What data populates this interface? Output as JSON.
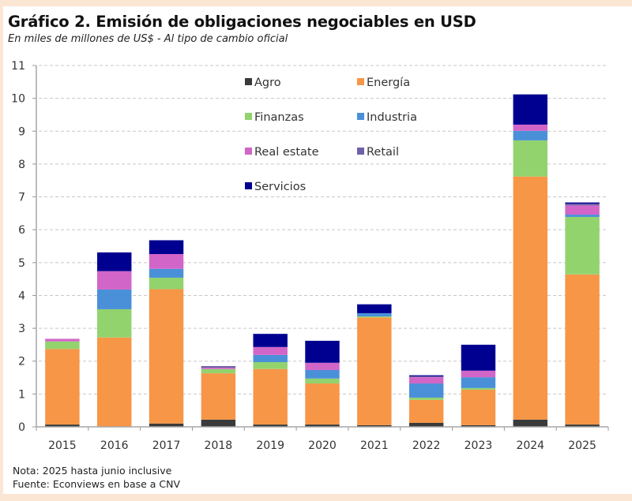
{
  "chart_data": {
    "type": "bar",
    "stacked": true,
    "title": "Gráfico 2. Emisión de obligaciones negociables en USD",
    "subtitle": "En miles de millones de US$ - Al tipo de cambio oficial",
    "xlabel": "",
    "ylabel": "",
    "ylim": [
      0,
      11
    ],
    "yticks": [
      0,
      1,
      2,
      3,
      4,
      5,
      6,
      7,
      8,
      9,
      10,
      11
    ],
    "grid": true,
    "legend_position": "top-center",
    "categories": [
      "2015",
      "2016",
      "2017",
      "2018",
      "2019",
      "2020",
      "2021",
      "2022",
      "2023",
      "2024",
      "2025"
    ],
    "series": [
      {
        "name": "Agro",
        "color": "#3a3a3a",
        "values": [
          0.07,
          0.01,
          0.1,
          0.22,
          0.07,
          0.07,
          0.05,
          0.12,
          0.05,
          0.22,
          0.07
        ]
      },
      {
        "name": "Energía",
        "color": "#f79646",
        "values": [
          2.3,
          2.71,
          4.09,
          1.41,
          1.69,
          1.25,
          3.28,
          0.7,
          1.08,
          7.4,
          4.57
        ]
      },
      {
        "name": "Finanzas",
        "color": "#92d36e",
        "values": [
          0.23,
          0.86,
          0.35,
          0.13,
          0.21,
          0.15,
          0.03,
          0.07,
          0.05,
          1.1,
          1.75
        ]
      },
      {
        "name": "Industria",
        "color": "#4a90d9",
        "values": [
          0.0,
          0.6,
          0.27,
          0.0,
          0.22,
          0.26,
          0.1,
          0.43,
          0.33,
          0.29,
          0.07
        ]
      },
      {
        "name": "Real estate",
        "color": "#d265c8",
        "values": [
          0.08,
          0.56,
          0.45,
          0.04,
          0.24,
          0.22,
          0.0,
          0.19,
          0.2,
          0.19,
          0.28
        ]
      },
      {
        "name": "Retail",
        "color": "#7060a8",
        "values": [
          0.0,
          0.0,
          0.0,
          0.05,
          0.0,
          0.0,
          0.0,
          0.03,
          0.0,
          0.0,
          0.05
        ]
      },
      {
        "name": "Servicios",
        "color": "#000090",
        "values": [
          0.0,
          0.57,
          0.42,
          0.0,
          0.4,
          0.67,
          0.27,
          0.03,
          0.79,
          0.92,
          0.04
        ]
      }
    ],
    "notes": [
      "Nota: 2025 hasta junio inclusive",
      "Fuente: Econviews en base a CNV"
    ]
  }
}
